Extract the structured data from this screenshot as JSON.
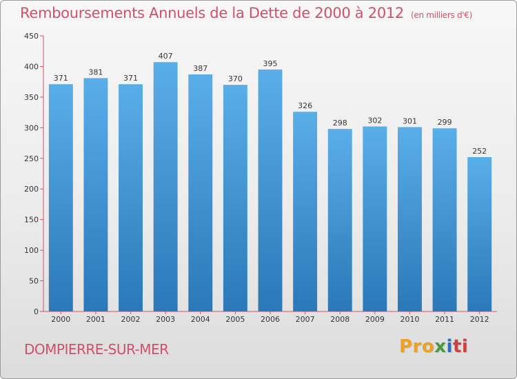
{
  "chart_data": {
    "type": "bar",
    "title": "Remboursements Annuels de la Dette de 2000 à 2012",
    "subtitle": "(en milliers d'€)",
    "categories": [
      "2000",
      "2001",
      "2002",
      "2003",
      "2004",
      "2005",
      "2006",
      "2007",
      "2008",
      "2009",
      "2010",
      "2011",
      "2012"
    ],
    "values": [
      371,
      381,
      371,
      407,
      387,
      370,
      395,
      326,
      298,
      302,
      301,
      299,
      252
    ],
    "ylim": [
      0,
      450
    ],
    "yticks": [
      0,
      50,
      100,
      150,
      200,
      250,
      300,
      350,
      400,
      450
    ],
    "grid": false,
    "bar_color_top": "#5aaee8",
    "bar_color_bottom": "#2a78b8",
    "axis_color": "#d0506a"
  },
  "footer": {
    "city": "DOMPIERRE-SUR-MER",
    "logo_parts": [
      "Pro",
      "x",
      "i",
      "ti"
    ]
  }
}
